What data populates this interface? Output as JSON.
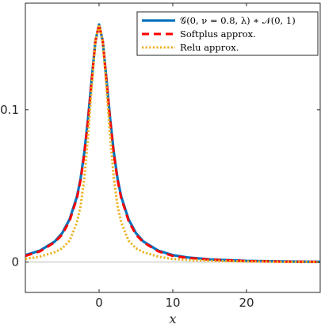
{
  "chart_data": {
    "type": "line",
    "title": "",
    "xlabel": "x",
    "ylabel": "",
    "xlim": [
      -10,
      30
    ],
    "ylim": [
      -0.02,
      0.17
    ],
    "xticks": [
      0,
      10,
      20
    ],
    "yticks": [
      0,
      0.1
    ],
    "xtick_labels": [
      "0",
      "10",
      "20"
    ],
    "ytick_labels": [
      "0",
      "0.1"
    ],
    "grid": false,
    "legend_position": "top-right",
    "reference_line": {
      "y": 0,
      "color": "#c8c8c8"
    },
    "series": [
      {
        "name": "𝒢(0, ν = 0.8, λ) ∗ 𝒩(0, 1)",
        "color": "#0072BD",
        "style": "solid",
        "x": [
          -10,
          -8,
          -6,
          -5,
          -4,
          -3,
          -2.5,
          -2,
          -1.5,
          -1,
          -0.5,
          0,
          0.5,
          1,
          1.5,
          2,
          2.5,
          3,
          4,
          5,
          6,
          8,
          10,
          12,
          15,
          20,
          25,
          30
        ],
        "y": [
          0.0045,
          0.0075,
          0.0135,
          0.019,
          0.028,
          0.043,
          0.055,
          0.072,
          0.094,
          0.12,
          0.145,
          0.156,
          0.145,
          0.12,
          0.094,
          0.072,
          0.055,
          0.043,
          0.028,
          0.019,
          0.0135,
          0.0075,
          0.0045,
          0.003,
          0.0017,
          0.0007,
          0.0003,
          0.0001
        ]
      },
      {
        "name": "Softplus approx.",
        "color": "#FF0000",
        "style": "dashed",
        "x": [
          -10,
          -8,
          -6,
          -5,
          -4,
          -3,
          -2.5,
          -2,
          -1.5,
          -1,
          -0.5,
          0,
          0.5,
          1,
          1.5,
          2,
          2.5,
          3,
          4,
          5,
          6,
          8,
          10,
          12,
          15,
          20,
          25,
          30
        ],
        "y": [
          0.004,
          0.007,
          0.013,
          0.018,
          0.027,
          0.042,
          0.054,
          0.071,
          0.093,
          0.119,
          0.145,
          0.156,
          0.145,
          0.119,
          0.093,
          0.071,
          0.054,
          0.042,
          0.027,
          0.018,
          0.013,
          0.007,
          0.004,
          0.0027,
          0.0015,
          0.0006,
          0.0002,
          0.0001
        ]
      },
      {
        "name": "Relu approx.",
        "color": "#EDB120",
        "style": "dotted",
        "x": [
          -10,
          -8,
          -6,
          -5,
          -4,
          -3,
          -2.5,
          -2,
          -1.5,
          -1,
          -0.5,
          0,
          0.5,
          1,
          1.5,
          2,
          2.5,
          3,
          4,
          5,
          6,
          8,
          10,
          12,
          15,
          20,
          25,
          30
        ],
        "y": [
          0.002,
          0.0035,
          0.0065,
          0.009,
          0.014,
          0.026,
          0.037,
          0.055,
          0.082,
          0.115,
          0.145,
          0.156,
          0.145,
          0.115,
          0.082,
          0.055,
          0.037,
          0.026,
          0.014,
          0.009,
          0.0065,
          0.0035,
          0.002,
          0.0013,
          0.0008,
          0.0003,
          0.0001,
          0.0
        ]
      }
    ]
  }
}
